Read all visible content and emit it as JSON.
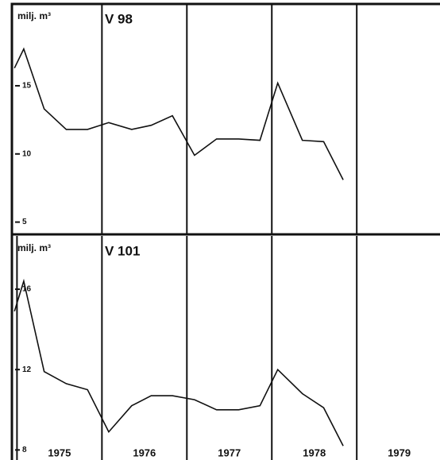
{
  "chart_data": [
    {
      "type": "line",
      "title": "V 98",
      "ylabel": "milj. m³",
      "x": [
        1974.97,
        1975.08,
        1975.32,
        1975.58,
        1975.83,
        1976.08,
        1976.35,
        1976.58,
        1976.83,
        1977.09,
        1977.35,
        1977.61,
        1977.86,
        1978.07,
        1978.36,
        1978.61,
        1978.84
      ],
      "series": [
        {
          "color": "#111111",
          "values": [
            16.3,
            17.7,
            13.3,
            11.8,
            11.8,
            12.3,
            11.8,
            12.1,
            12.8,
            9.9,
            11.1,
            11.1,
            11.0,
            15.2,
            11.0,
            10.9,
            8.1
          ]
        }
      ],
      "xlim": [
        1974.8,
        1979.98
      ],
      "xticks": [
        1976,
        1977,
        1978,
        1979
      ],
      "ylim": [
        4.1,
        21.0
      ],
      "yticks": [
        5,
        10,
        15
      ]
    },
    {
      "type": "line",
      "title": "V 101",
      "ylabel": "milj. m³",
      "x": [
        1974.97,
        1975.08,
        1975.32,
        1975.58,
        1975.83,
        1976.08,
        1976.35,
        1976.58,
        1976.83,
        1977.09,
        1977.35,
        1977.61,
        1977.86,
        1978.07,
        1978.36,
        1978.61,
        1978.84
      ],
      "series": [
        {
          "color": "#111111",
          "values": [
            14.9,
            16.4,
            11.9,
            11.3,
            11.0,
            8.9,
            10.2,
            10.7,
            10.7,
            10.5,
            10.0,
            10.0,
            10.2,
            12.0,
            10.8,
            10.1,
            8.2
          ]
        }
      ],
      "xlim": [
        1974.8,
        1979.98
      ],
      "xticks": [
        {
          "value": 1975,
          "label": "1975"
        },
        {
          "value": 1976,
          "label": "1976"
        },
        {
          "value": 1977,
          "label": "1977"
        },
        {
          "value": 1978,
          "label": "1978"
        },
        {
          "value": 1979,
          "label": "1979"
        }
      ],
      "ylim": [
        7.5,
        18.65
      ],
      "yticks": [
        8,
        12,
        16
      ]
    }
  ]
}
